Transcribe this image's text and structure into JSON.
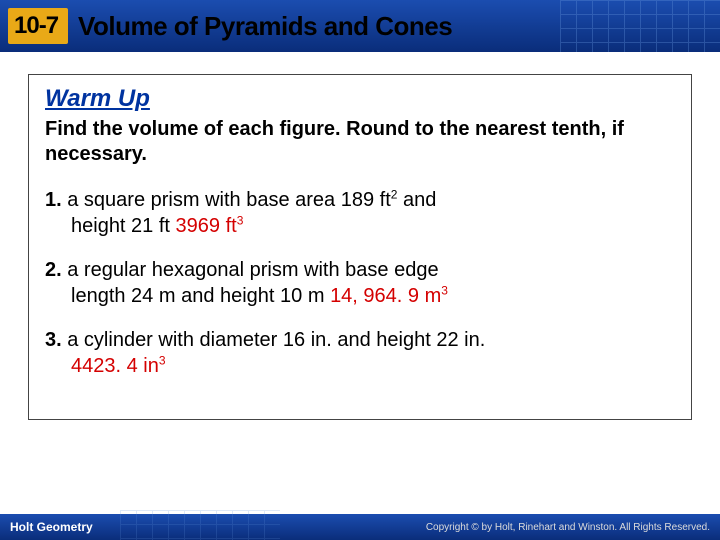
{
  "header": {
    "lesson_number": "10-7",
    "title": "Volume of Pyramids and Cones",
    "bg_gradient_top": "#1b4db0",
    "bg_gradient_bottom": "#0a2d7a",
    "badge_bg": "#e9a917"
  },
  "content": {
    "warmup_label": "Warm Up",
    "warmup_color": "#0033a0",
    "instruction": "Find the volume of each figure. Round to the nearest tenth, if necessary.",
    "answer_color": "#d40000",
    "problems": [
      {
        "num": "1.",
        "line1": "a square prism with base area 189 ft",
        "exp1": "2",
        "line1_tail": " and",
        "line2": "height 21 ft ",
        "answer": "3969 ft",
        "answer_exp": "3"
      },
      {
        "num": "2.",
        "line1": "a regular hexagonal prism with base edge",
        "line2": "length 24 m and height 10 m ",
        "answer": "14, 964. 9 m",
        "answer_exp": "3"
      },
      {
        "num": "3.",
        "line1": "a cylinder with diameter 16 in. and height 22 in.",
        "answer": "4423. 4 in",
        "answer_exp": "3"
      }
    ]
  },
  "footer": {
    "left": "Holt Geometry",
    "right": "Copyright © by Holt, Rinehart and Winston. All Rights Reserved."
  }
}
